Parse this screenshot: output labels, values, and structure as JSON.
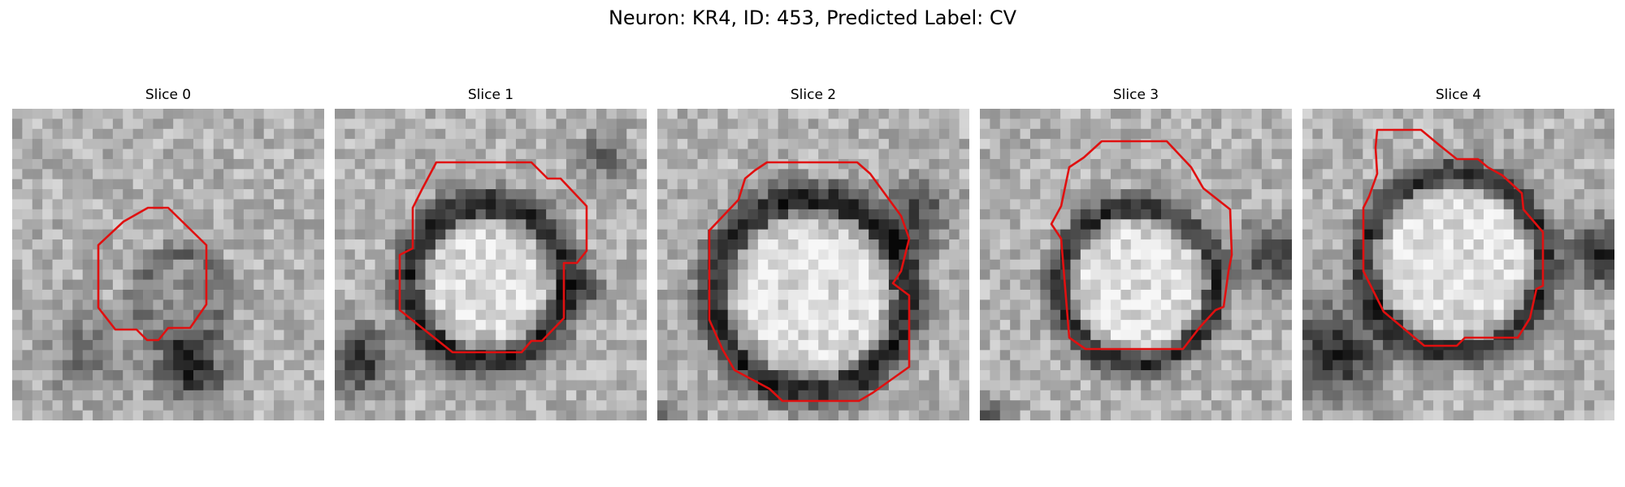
{
  "figure": {
    "title": "Neuron: KR4, ID: 453, Predicted Label: CV"
  },
  "panels": [
    {
      "title": "Slice 0",
      "seed": 11,
      "outline_color": "#e01010"
    },
    {
      "title": "Slice 1",
      "seed": 23,
      "outline_color": "#e01010"
    },
    {
      "title": "Slice 2",
      "seed": 37,
      "outline_color": "#e01010"
    },
    {
      "title": "Slice 3",
      "seed": 51,
      "outline_color": "#e01010"
    },
    {
      "title": "Slice 4",
      "seed": 67,
      "outline_color": "#e01010"
    }
  ]
}
